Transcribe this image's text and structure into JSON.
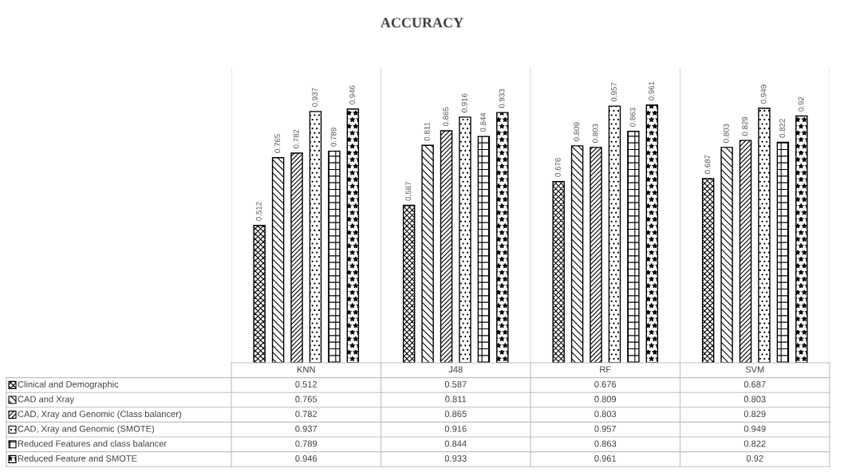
{
  "chart_data": {
    "type": "bar",
    "title": "ACCURACY",
    "categories": [
      "KNN",
      "J48",
      "RF",
      "SVM"
    ],
    "series": [
      {
        "name": "Clinical and Demographic",
        "color": "#000000",
        "values": [
          0.512,
          0.587,
          0.676,
          0.687
        ],
        "value_labels": [
          "0.512",
          "0.587",
          "0.676",
          "0.687"
        ]
      },
      {
        "name": "CAD and Xray",
        "color": "#000000",
        "values": [
          0.765,
          0.811,
          0.809,
          0.803
        ],
        "value_labels": [
          "0.765",
          "0.811",
          "0.809",
          "0.803"
        ]
      },
      {
        "name": "CAD, Xray and Genomic (Class balancer)",
        "color": "#000000",
        "values": [
          0.782,
          0.865,
          0.803,
          0.829
        ],
        "value_labels": [
          "0.782",
          "0.865",
          "0.803",
          "0.829"
        ]
      },
      {
        "name": "CAD, Xray and Genomic (SMOTE)",
        "color": "#000000",
        "values": [
          0.937,
          0.916,
          0.957,
          0.949
        ],
        "value_labels": [
          "0.937",
          "0.916",
          "0.957",
          "0.949"
        ]
      },
      {
        "name": "Reduced Features and class balancer",
        "color": "#000000",
        "values": [
          0.789,
          0.844,
          0.863,
          0.822
        ],
        "value_labels": [
          "0.789",
          "0.844",
          "0.863",
          "0.822"
        ]
      },
      {
        "name": "Reduced Feature and SMOTE",
        "color": "#000000",
        "values": [
          0.946,
          0.933,
          0.961,
          0.92
        ],
        "value_labels": [
          "0.946",
          "0.933",
          "0.961",
          "0.92"
        ]
      }
    ],
    "annotations": [
      "0.512",
      "0.587",
      "0.676",
      "0.687",
      "0.765",
      "0.811",
      "0.809",
      "0.803",
      "0.782",
      "0.865",
      "0.803",
      "0.829",
      "0.937",
      "0.916",
      "0.957",
      "0.949",
      "0.789",
      "0.844",
      "0.863",
      "0.822",
      "0.946",
      "0.933",
      "0.961",
      "0.92"
    ],
    "ylim": [
      0,
      1.1
    ],
    "tick_labels": false,
    "grid": false,
    "legend": "bottom left"
  }
}
